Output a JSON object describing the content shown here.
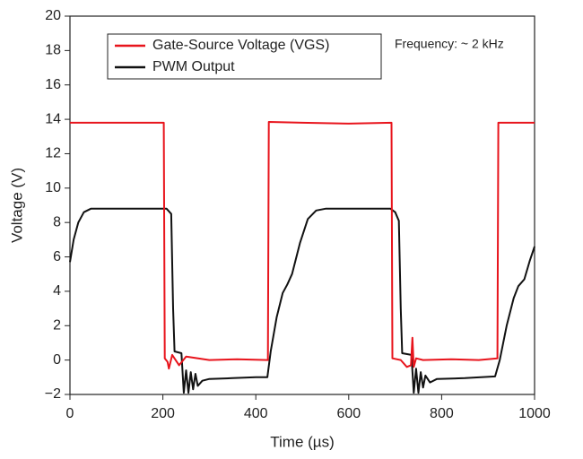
{
  "chart_data": {
    "type": "line",
    "xlabel": "Time (µs)",
    "ylabel": "Voltage (V)",
    "annotation": "Frequency: ~ 2 kHz",
    "xlim": [
      0,
      1000
    ],
    "xticks": [
      0,
      200,
      400,
      600,
      800,
      1000
    ],
    "ylim": [
      -2,
      20
    ],
    "yticks": [
      {
        "value": -2,
        "label": "−2"
      },
      0,
      2,
      4,
      6,
      8,
      10,
      12,
      14,
      16,
      18,
      20
    ],
    "legend": "upper left",
    "series": [
      {
        "name": "Gate-Source Voltage (VGS)",
        "color": "#e8141c",
        "x": [
          0,
          100,
          202,
          204,
          210,
          213,
          220,
          235,
          250,
          300,
          360,
          426,
          428,
          500,
          600,
          692,
          694,
          712,
          725,
          734,
          737,
          740,
          745,
          760,
          820,
          880,
          920,
          922,
          960,
          1000
        ],
        "values": [
          13.8,
          13.8,
          13.8,
          0.1,
          -0.1,
          -0.5,
          0.3,
          -0.3,
          0.2,
          0.0,
          0.05,
          0.0,
          13.85,
          13.8,
          13.75,
          13.8,
          0.1,
          0.0,
          -0.4,
          -0.3,
          1.3,
          -0.4,
          0.1,
          0.0,
          0.05,
          0.0,
          0.1,
          13.8,
          13.8,
          13.8
        ]
      },
      {
        "name": "PWM Output",
        "color": "#111111",
        "x": [
          0,
          8,
          18,
          30,
          45,
          100,
          200,
          208,
          218,
          222,
          225,
          240,
          245,
          250,
          255,
          260,
          265,
          270,
          275,
          285,
          300,
          350,
          400,
          425,
          432,
          445,
          458,
          468,
          478,
          495,
          512,
          530,
          550,
          600,
          690,
          700,
          708,
          712,
          715,
          735,
          740,
          745,
          750,
          755,
          760,
          765,
          775,
          790,
          850,
          915,
          925,
          940,
          955,
          965,
          978,
          990,
          1000
        ],
        "values": [
          5.7,
          7.0,
          8.0,
          8.6,
          8.8,
          8.8,
          8.8,
          8.8,
          8.5,
          3.0,
          0.5,
          0.4,
          -1.9,
          -0.6,
          -1.9,
          -0.7,
          -1.7,
          -0.8,
          -1.5,
          -1.2,
          -1.1,
          -1.05,
          -1.0,
          -1.0,
          0.5,
          2.5,
          3.9,
          4.4,
          5.0,
          6.8,
          8.2,
          8.7,
          8.8,
          8.8,
          8.8,
          8.6,
          8.1,
          3.0,
          0.4,
          0.3,
          -1.9,
          -0.5,
          -1.9,
          -0.7,
          -1.6,
          -0.9,
          -1.3,
          -1.1,
          -1.05,
          -0.95,
          0.0,
          2.0,
          3.6,
          4.3,
          4.7,
          5.8,
          6.6
        ]
      }
    ]
  }
}
